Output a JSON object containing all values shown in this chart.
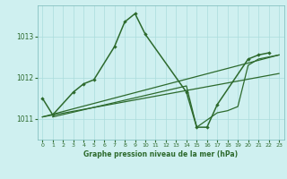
{
  "title": "Graphe pression niveau de la mer (hPa)",
  "bg_color": "#cff0f0",
  "grid_color": "#aadddd",
  "line_color": "#2d6a2d",
  "xlim": [
    -0.5,
    23.5
  ],
  "ylim": [
    1010.5,
    1013.75
  ],
  "yticks": [
    1011,
    1012,
    1013
  ],
  "xticks": [
    0,
    1,
    2,
    3,
    4,
    5,
    6,
    7,
    8,
    9,
    10,
    11,
    12,
    13,
    14,
    15,
    16,
    17,
    18,
    19,
    20,
    21,
    22,
    23
  ],
  "series_main": {
    "x": [
      0,
      1,
      3,
      4,
      5,
      7,
      8,
      9,
      10,
      14,
      15,
      16,
      17,
      20,
      21,
      22
    ],
    "y": [
      1011.5,
      1011.1,
      1011.65,
      1011.85,
      1011.95,
      1012.75,
      1013.35,
      1013.55,
      1013.05,
      1011.65,
      1010.8,
      1010.8,
      1011.35,
      1012.45,
      1012.55,
      1012.6
    ]
  },
  "series_line1": {
    "x": [
      0,
      23
    ],
    "y": [
      1011.05,
      1012.55
    ]
  },
  "series_line2": {
    "x": [
      0,
      23
    ],
    "y": [
      1011.05,
      1012.1
    ]
  },
  "series_line3": {
    "x": [
      1,
      14,
      15,
      17,
      18,
      19,
      20,
      21,
      22,
      23
    ],
    "y": [
      1011.05,
      1011.8,
      1010.8,
      1011.15,
      1011.2,
      1011.3,
      1012.3,
      1012.45,
      1012.5,
      1012.55
    ]
  }
}
